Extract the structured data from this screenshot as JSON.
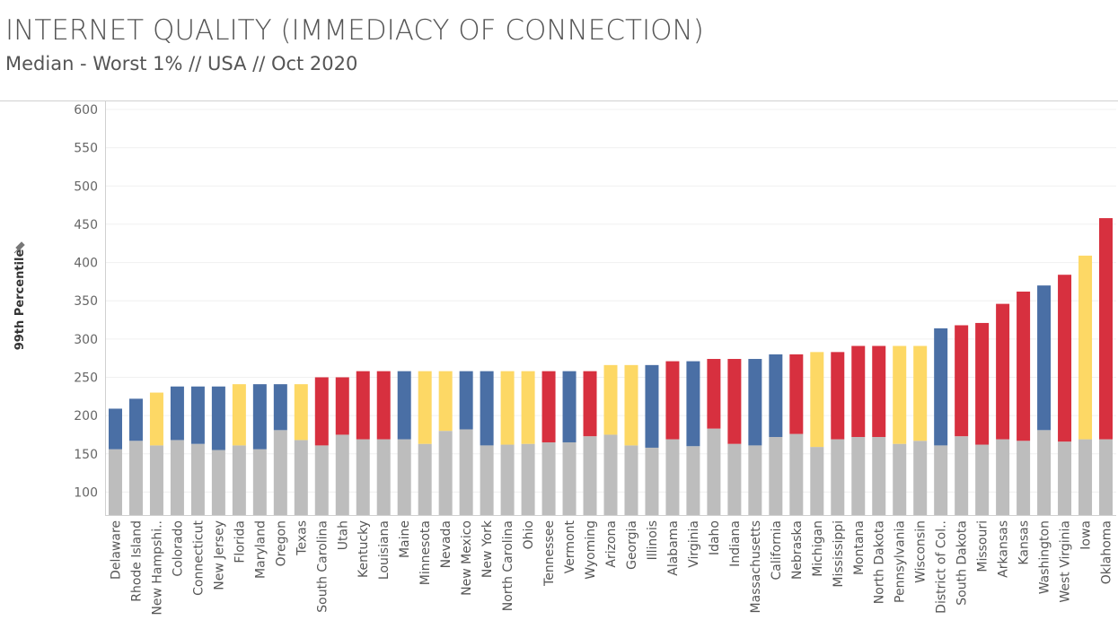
{
  "chart_data": {
    "type": "range-bar",
    "title": "INTERNET QUALITY (IMMEDIACY OF CONNECTION)",
    "subtitle": "Median - Worst 1% // USA // Oct 2020",
    "ylabel": "99th Percentile",
    "categories": [
      "Delaware",
      "Rhode Island",
      "New Hampshi..",
      "Colorado",
      "Connecticut",
      "New Jersey",
      "Florida",
      "Maryland",
      "Oregon",
      "Texas",
      "South Carolina",
      "Utah",
      "Kentucky",
      "Louisiana",
      "Maine",
      "Minnesota",
      "Nevada",
      "New Mexico",
      "New York",
      "North Carolina",
      "Ohio",
      "Tennessee",
      "Vermont",
      "Wyoming",
      "Arizona",
      "Georgia",
      "Illinois",
      "Alabama",
      "Virginia",
      "Idaho",
      "Indiana",
      "Massachusetts",
      "California",
      "Nebraska",
      "Michigan",
      "Mississippi",
      "Montana",
      "North Dakota",
      "Pennsylvania",
      "Wisconsin",
      "District of Col..",
      "South Dakota",
      "Missouri",
      "Arkansas",
      "Kansas",
      "Washington",
      "West Virginia",
      "Iowa",
      "Oklahoma"
    ],
    "series": [
      {
        "color": "#bdbdbd",
        "values": [
          156,
          167,
          161,
          168,
          163,
          155,
          161,
          156,
          181,
          168,
          161,
          175,
          169,
          169,
          169,
          163,
          180,
          182,
          161,
          162,
          163,
          165,
          165,
          173,
          175,
          161,
          158,
          169,
          160,
          183,
          163,
          161,
          172,
          176,
          159,
          169,
          172,
          172,
          163,
          167,
          161,
          173,
          162,
          169,
          167,
          181,
          166,
          169,
          169
        ]
      },
      {
        "colors": [
          "#4a6fa5",
          "#4a6fa5",
          "#fdd865",
          "#4a6fa5",
          "#4a6fa5",
          "#4a6fa5",
          "#fdd865",
          "#4a6fa5",
          "#4a6fa5",
          "#fdd865",
          "#d7303f",
          "#d7303f",
          "#d7303f",
          "#d7303f",
          "#4a6fa5",
          "#fdd865",
          "#fdd865",
          "#4a6fa5",
          "#4a6fa5",
          "#fdd865",
          "#fdd865",
          "#d7303f",
          "#4a6fa5",
          "#d7303f",
          "#fdd865",
          "#fdd865",
          "#4a6fa5",
          "#d7303f",
          "#4a6fa5",
          "#d7303f",
          "#d7303f",
          "#4a6fa5",
          "#4a6fa5",
          "#d7303f",
          "#fdd865",
          "#d7303f",
          "#d7303f",
          "#d7303f",
          "#fdd865",
          "#fdd865",
          "#4a6fa5",
          "#d7303f",
          "#d7303f",
          "#d7303f",
          "#d7303f",
          "#4a6fa5",
          "#d7303f",
          "#fdd865",
          "#d7303f"
        ],
        "values": [
          209,
          222,
          230,
          238,
          238,
          238,
          241,
          241,
          241,
          241,
          250,
          250,
          258,
          258,
          258,
          258,
          258,
          258,
          258,
          258,
          258,
          258,
          258,
          258,
          266,
          266,
          266,
          271,
          271,
          274,
          274,
          274,
          280,
          280,
          283,
          283,
          291,
          291,
          291,
          291,
          314,
          318,
          321,
          346,
          362,
          370,
          384,
          409,
          458
        ]
      }
    ],
    "ylim": [
      70,
      600
    ],
    "yticks": [
      100,
      150,
      200,
      250,
      300,
      350,
      400,
      450,
      500,
      550,
      600
    ],
    "grid": true
  }
}
